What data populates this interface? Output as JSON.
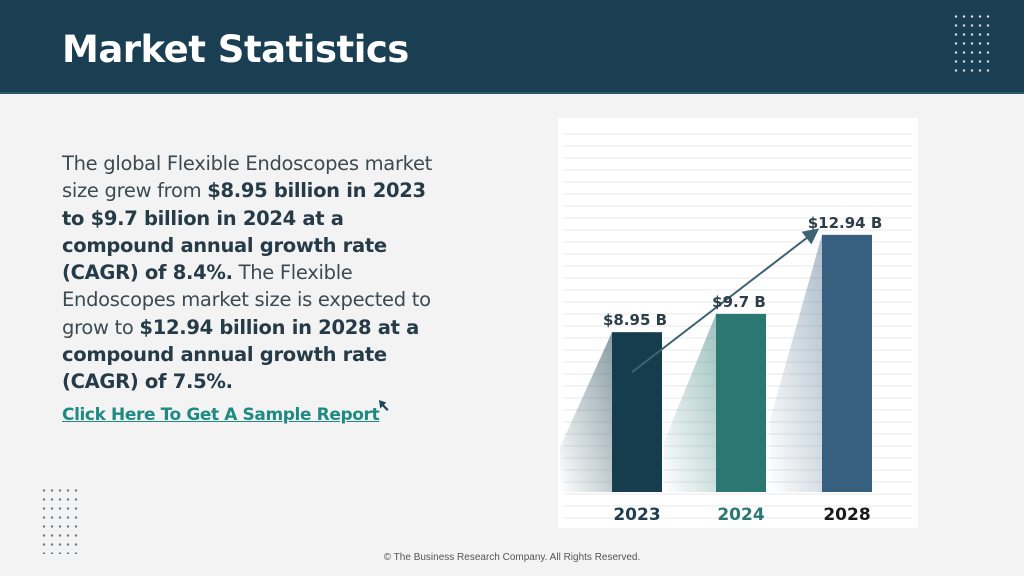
{
  "header": {
    "title": "Market Statistics"
  },
  "description": {
    "p1": "The global Flexible Endoscopes market size grew from ",
    "b1": "$8.95 billion in 2023 to $9.7 billion in 2024 at a compound annual growth rate (CAGR) of 8.4%.",
    "p2": " The Flexible Endoscopes market size is expected to grow to ",
    "b2": "$12.94 billion in 2028 at a compound annual growth rate (CAGR) of 7.5%."
  },
  "cta": {
    "label": "Click Here To Get A Sample Report"
  },
  "footer": {
    "copyright": "© The Business Research Company. All Rights Reserved."
  },
  "colors": {
    "header_bg": "#1a3f52",
    "link": "#1f8a82"
  },
  "chart_data": {
    "type": "bar",
    "categories": [
      "2023",
      "2024",
      "2028"
    ],
    "values": [
      8.95,
      9.7,
      12.94
    ],
    "data_labels": [
      "$8.95 B",
      "$9.7 B",
      "$12.94 B"
    ],
    "bar_colors": [
      "#163d4d",
      "#2b7771",
      "#365f80"
    ],
    "category_label_colors": [
      "#1f3f50",
      "#2b7771",
      "#1a1a1a"
    ],
    "trend_arrow": true,
    "grid": true
  }
}
